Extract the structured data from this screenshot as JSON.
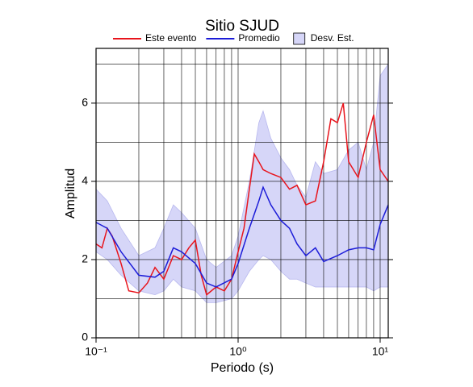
{
  "chart_data": {
    "type": "line",
    "title": "Sitio SJUD",
    "xlabel": "Periodo (s)",
    "ylabel": "Amplitud",
    "xscale": "log",
    "xlim": [
      0.1,
      11.4
    ],
    "ylim": [
      0,
      7.4
    ],
    "xticks": [
      {
        "value": 0.1,
        "label": "10⁻¹"
      },
      {
        "value": 1,
        "label": "10⁰"
      },
      {
        "value": 10,
        "label": "10¹"
      }
    ],
    "yticks": [
      0,
      2,
      4,
      6
    ],
    "xgrid": [
      0.1,
      0.2,
      0.3,
      0.4,
      0.5,
      0.6,
      0.7,
      0.8,
      0.9,
      1,
      2,
      3,
      4,
      5,
      6,
      7,
      8,
      9,
      10
    ],
    "ygrid": [
      1,
      2,
      3,
      4,
      5,
      6,
      7
    ],
    "legend": "top",
    "band": {
      "name": "Desv. Est.",
      "color": "#d6d6f8",
      "x": [
        0.1,
        0.12,
        0.15,
        0.2,
        0.26,
        0.3,
        0.35,
        0.4,
        0.5,
        0.6,
        0.7,
        0.9,
        1.0,
        1.2,
        1.4,
        1.5,
        1.7,
        2,
        2.3,
        2.6,
        3,
        3.5,
        4,
        5,
        6,
        7,
        8,
        9,
        10,
        11.4
      ],
      "high": [
        3.8,
        3.5,
        2.8,
        2.1,
        2.3,
        2.8,
        3.4,
        3.2,
        2.8,
        2.0,
        1.8,
        2.1,
        2.6,
        4.0,
        5.5,
        5.8,
        5.1,
        4.6,
        4.3,
        3.9,
        3.6,
        4.5,
        4.2,
        4.3,
        4.8,
        5.0,
        4.3,
        5.0,
        6.7,
        7.0
      ],
      "low": [
        2.2,
        2.0,
        1.6,
        1.2,
        1.1,
        1.2,
        1.5,
        1.3,
        1.2,
        0.9,
        0.9,
        1.0,
        1.2,
        1.7,
        2.0,
        2.1,
        2.0,
        1.7,
        1.5,
        1.5,
        1.4,
        1.3,
        1.3,
        1.3,
        1.3,
        1.3,
        1.3,
        1.2,
        1.3,
        1.3
      ]
    },
    "series": [
      {
        "name": "Este evento",
        "color": "#e8141c",
        "x": [
          0.1,
          0.11,
          0.12,
          0.13,
          0.15,
          0.17,
          0.2,
          0.23,
          0.26,
          0.3,
          0.35,
          0.4,
          0.45,
          0.5,
          0.55,
          0.6,
          0.7,
          0.8,
          0.9,
          1.0,
          1.1,
          1.2,
          1.3,
          1.4,
          1.5,
          1.7,
          2,
          2.3,
          2.6,
          3,
          3.5,
          4,
          4.5,
          5,
          5.5,
          6,
          7,
          8,
          9,
          10,
          11.4
        ],
        "values": [
          2.4,
          2.3,
          2.8,
          2.6,
          1.9,
          1.2,
          1.15,
          1.4,
          1.8,
          1.5,
          2.1,
          2.0,
          2.3,
          2.5,
          1.6,
          1.1,
          1.3,
          1.2,
          1.5,
          2.2,
          2.8,
          3.8,
          4.7,
          4.5,
          4.3,
          4.2,
          4.1,
          3.8,
          3.9,
          3.4,
          3.5,
          4.5,
          5.6,
          5.5,
          6.0,
          4.5,
          4.1,
          5.0,
          5.7,
          4.3,
          4.0
        ]
      },
      {
        "name": "Promedio",
        "color": "#1c1cd8",
        "x": [
          0.1,
          0.12,
          0.15,
          0.2,
          0.26,
          0.3,
          0.35,
          0.4,
          0.5,
          0.6,
          0.7,
          0.9,
          1.0,
          1.2,
          1.4,
          1.5,
          1.7,
          2,
          2.3,
          2.6,
          3,
          3.5,
          4,
          5,
          6,
          7,
          8,
          9,
          10,
          11.4
        ],
        "values": [
          2.95,
          2.8,
          2.2,
          1.6,
          1.55,
          1.7,
          2.3,
          2.2,
          1.9,
          1.4,
          1.3,
          1.5,
          1.9,
          2.8,
          3.5,
          3.85,
          3.4,
          3.0,
          2.8,
          2.4,
          2.1,
          2.3,
          1.95,
          2.1,
          2.25,
          2.3,
          2.3,
          2.25,
          2.9,
          3.4
        ]
      }
    ]
  }
}
